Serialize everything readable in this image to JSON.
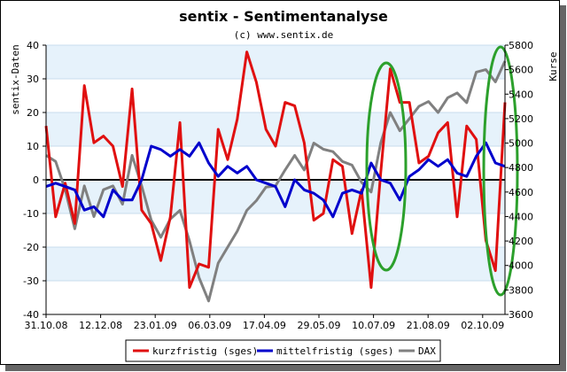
{
  "chart_data": {
    "type": "line",
    "title": "sentix - Sentimentanalyse",
    "subtitle": "(c) www.sentix.de",
    "ylabel_left": "sentix-Daten",
    "ylabel_right": "Kurse",
    "ylim_left": [
      -40,
      40
    ],
    "ylim_right": [
      3600,
      5800
    ],
    "yticks_left": [
      "40",
      "30",
      "20",
      "10",
      "0",
      "-10",
      "-20",
      "-30",
      "-40"
    ],
    "yticks_right": [
      "5800",
      "5600",
      "5400",
      "5200",
      "5000",
      "4800",
      "4600",
      "4400",
      "4200",
      "4000",
      "3800",
      "3600"
    ],
    "xticks": [
      "31.10.08",
      "12.12.08",
      "23.01.09",
      "06.03.09",
      "17.04.09",
      "29.05.09",
      "10.07.09",
      "21.08.09",
      "02.10.09"
    ],
    "series": [
      {
        "name": "kurzfristig (sges)",
        "axis": "left",
        "color": "#e01010",
        "values": [
          16,
          -11,
          -1,
          -13,
          28,
          11,
          13,
          10,
          -2,
          27,
          -9,
          -13,
          -24,
          -11,
          17,
          -32,
          -25,
          -26,
          15,
          6,
          18,
          38,
          29,
          15,
          10,
          23,
          22,
          11,
          -12,
          -10,
          6,
          4,
          -16,
          -3,
          -32,
          2,
          33,
          23,
          23,
          5,
          7,
          14,
          17,
          -11,
          16,
          12,
          -18,
          -27,
          23
        ]
      },
      {
        "name": "mittelfristig (sges)",
        "axis": "left",
        "color": "#0000cc",
        "values": [
          -2,
          -1,
          -2,
          -3,
          -9,
          -8,
          -11,
          -3,
          -6,
          -6,
          0,
          10,
          9,
          7,
          9,
          7,
          11,
          5,
          1,
          4,
          2,
          4,
          0,
          -1,
          -2,
          -8,
          0,
          -3,
          -4,
          -6,
          -11,
          -4,
          -3,
          -4,
          5,
          0,
          -1,
          -6,
          1,
          3,
          6,
          4,
          6,
          2,
          1,
          7,
          11,
          5,
          4
        ]
      },
      {
        "name": "DAX",
        "axis": "right",
        "color": "#808080",
        "values": [
          4900,
          4850,
          4620,
          4300,
          4650,
          4400,
          4620,
          4650,
          4500,
          4900,
          4650,
          4370,
          4230,
          4380,
          4450,
          4200,
          3900,
          3710,
          4020,
          4150,
          4280,
          4450,
          4530,
          4640,
          4650,
          4780,
          4900,
          4780,
          5000,
          4950,
          4930,
          4850,
          4820,
          4680,
          4600,
          5000,
          5250,
          5100,
          5200,
          5300,
          5340,
          5250,
          5370,
          5410,
          5330,
          5580,
          5600,
          5500,
          5670
        ]
      }
    ],
    "legend": [
      "kurzfristig (sges)",
      "mittelfristig (sges)",
      "DAX"
    ],
    "legend_position": "bottom",
    "annotations": [
      "green ellipse around 10.07.09 spike",
      "green ellipse around latest period 02.10.09"
    ]
  }
}
